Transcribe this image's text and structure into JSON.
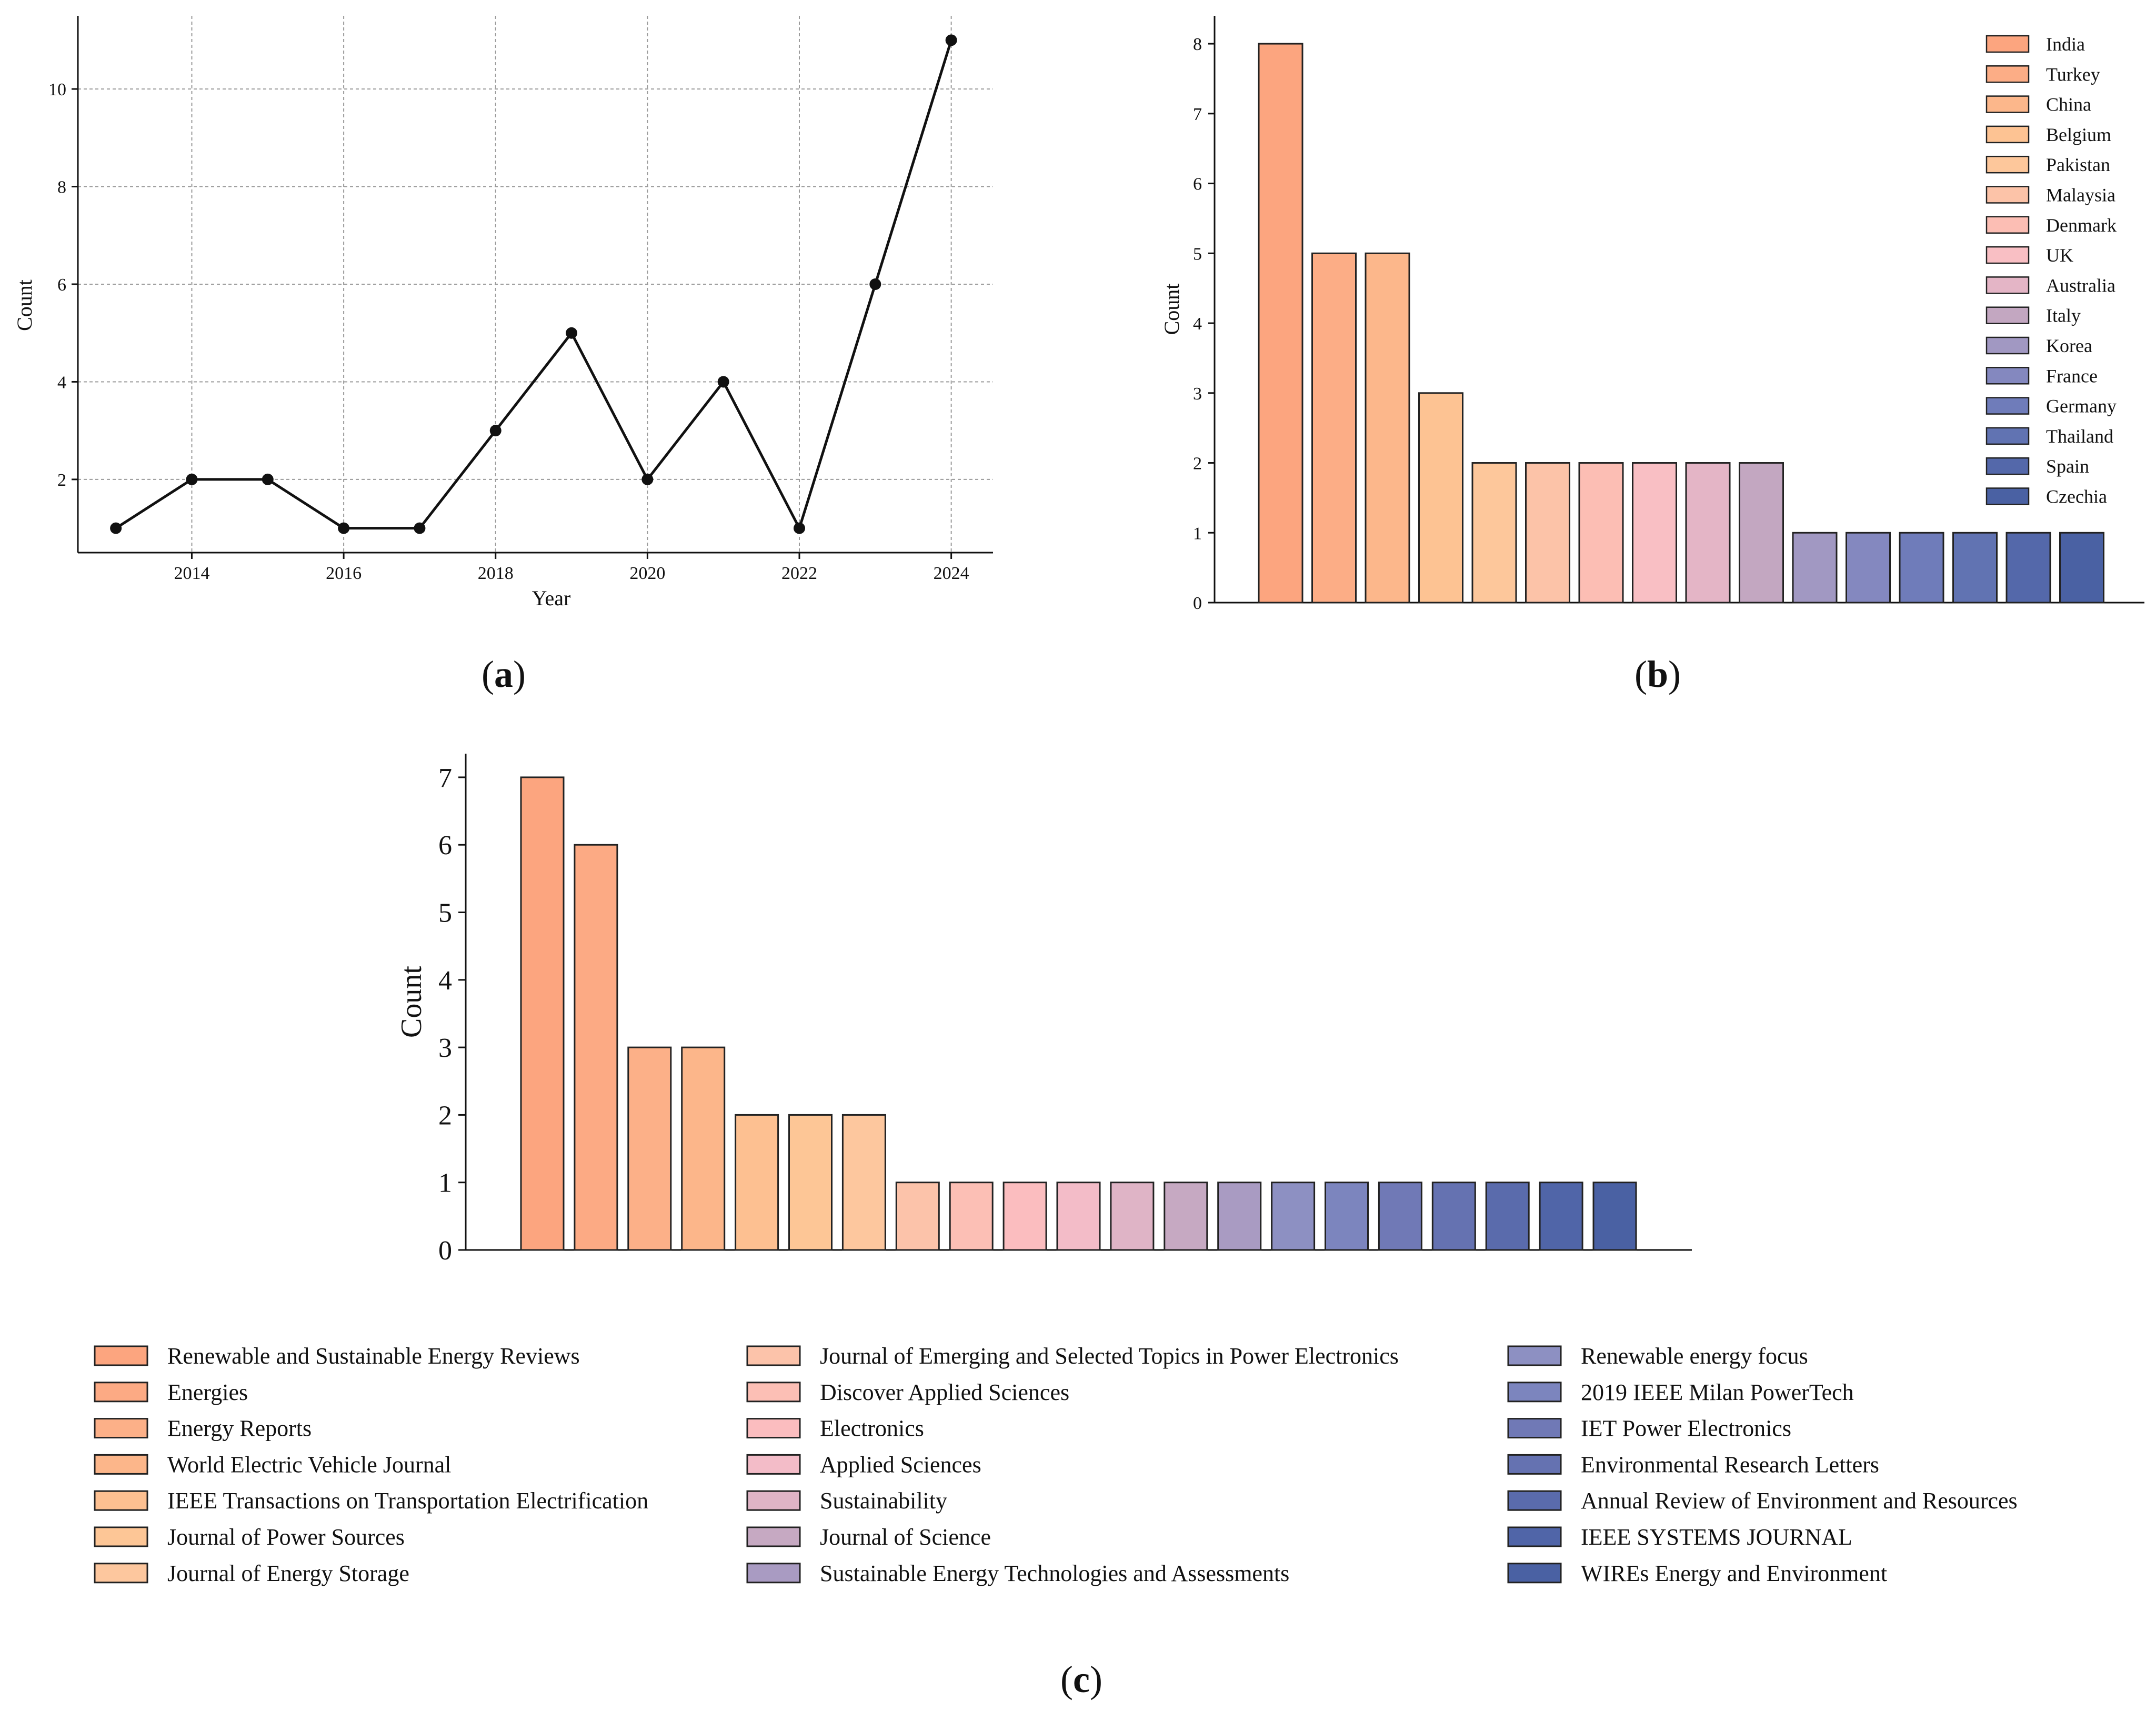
{
  "chart_data": [
    {
      "type": "line",
      "panel_label": "a",
      "xlabel": "Year",
      "ylabel": "Count",
      "x": [
        2013,
        2014,
        2015,
        2016,
        2017,
        2018,
        2019,
        2020,
        2021,
        2022,
        2023,
        2024
      ],
      "values": [
        1,
        2,
        2,
        1,
        1,
        3,
        5,
        2,
        4,
        1,
        6,
        11
      ],
      "xticks": [
        "2014",
        "2016",
        "2018",
        "2020",
        "2022",
        "2024"
      ],
      "yticks": [
        "2",
        "4",
        "6",
        "8",
        "10"
      ],
      "xlim": [
        2012.5,
        2024.55
      ],
      "ylim": [
        0.5,
        11.5
      ],
      "grid": true,
      "line_color": "#111111"
    },
    {
      "type": "bar",
      "panel_label": "b",
      "xlabel": "",
      "ylabel": "Count",
      "categories": [
        "India",
        "Turkey",
        "China",
        "Belgium",
        "Pakistan",
        "Malaysia",
        "Denmark",
        "UK",
        "Australia",
        "Italy",
        "Korea",
        "France",
        "Germany",
        "Thailand",
        "Spain",
        "Czechia"
      ],
      "values": [
        8,
        5,
        5,
        3,
        2,
        2,
        2,
        2,
        2,
        2,
        1,
        1,
        1,
        1,
        1,
        1
      ],
      "colors": [
        "#fca57f",
        "#fcad86",
        "#fcb78b",
        "#fdc393",
        "#fdc79b",
        "#fcc3a8",
        "#fcbeb4",
        "#f9bfc4",
        "#e4b5c6",
        "#c3a7c1",
        "#a198c2",
        "#8488bf",
        "#6f7cba",
        "#6173b2",
        "#5468aa",
        "#4a61a3"
      ],
      "yticks": [
        "0",
        "1",
        "2",
        "3",
        "4",
        "5",
        "6",
        "7",
        "8"
      ],
      "ylim": [
        0,
        8.4
      ],
      "legend_position": "top-right"
    },
    {
      "type": "bar",
      "panel_label": "c",
      "xlabel": "",
      "ylabel": "Count",
      "categories": [
        "Renewable and Sustainable Energy Reviews",
        "Energies",
        "Energy Reports",
        "World Electric Vehicle Journal",
        "IEEE Transactions on Transportation Electrification",
        "Journal of Power Sources",
        "Journal of Energy Storage",
        "Journal of Emerging and Selected Topics in Power Electronics",
        "Discover Applied Sciences",
        "Electronics",
        "Applied Sciences",
        "Sustainability",
        "Journal of Science",
        "Sustainable Energy Technologies and Assessments",
        "Renewable energy focus",
        "2019 IEEE Milan PowerTech",
        "IET Power Electronics",
        "Environmental Research Letters",
        "Annual Review of Environment and Resources",
        "IEEE SYSTEMS JOURNAL",
        "WIREs Energy and Environment"
      ],
      "values": [
        7,
        6,
        3,
        3,
        2,
        2,
        2,
        1,
        1,
        1,
        1,
        1,
        1,
        1,
        1,
        1,
        1,
        1,
        1,
        1,
        1
      ],
      "colors": [
        "#fca57f",
        "#fcaa84",
        "#fcb088",
        "#fcb68a",
        "#fdc091",
        "#fdc696",
        "#fdc79e",
        "#fcc3aa",
        "#fcbfb5",
        "#fbbdbf",
        "#f3bcc8",
        "#dfb4c6",
        "#c6a9c2",
        "#a99bc2",
        "#8d90c2",
        "#7c85be",
        "#7079b6",
        "#6572b1",
        "#5a6bac",
        "#5065a8",
        "#4a61a3"
      ],
      "yticks": [
        "0",
        "1",
        "2",
        "3",
        "4",
        "5",
        "6",
        "7"
      ],
      "ylim": [
        0,
        7.35
      ],
      "legend_position": "bottom"
    }
  ]
}
